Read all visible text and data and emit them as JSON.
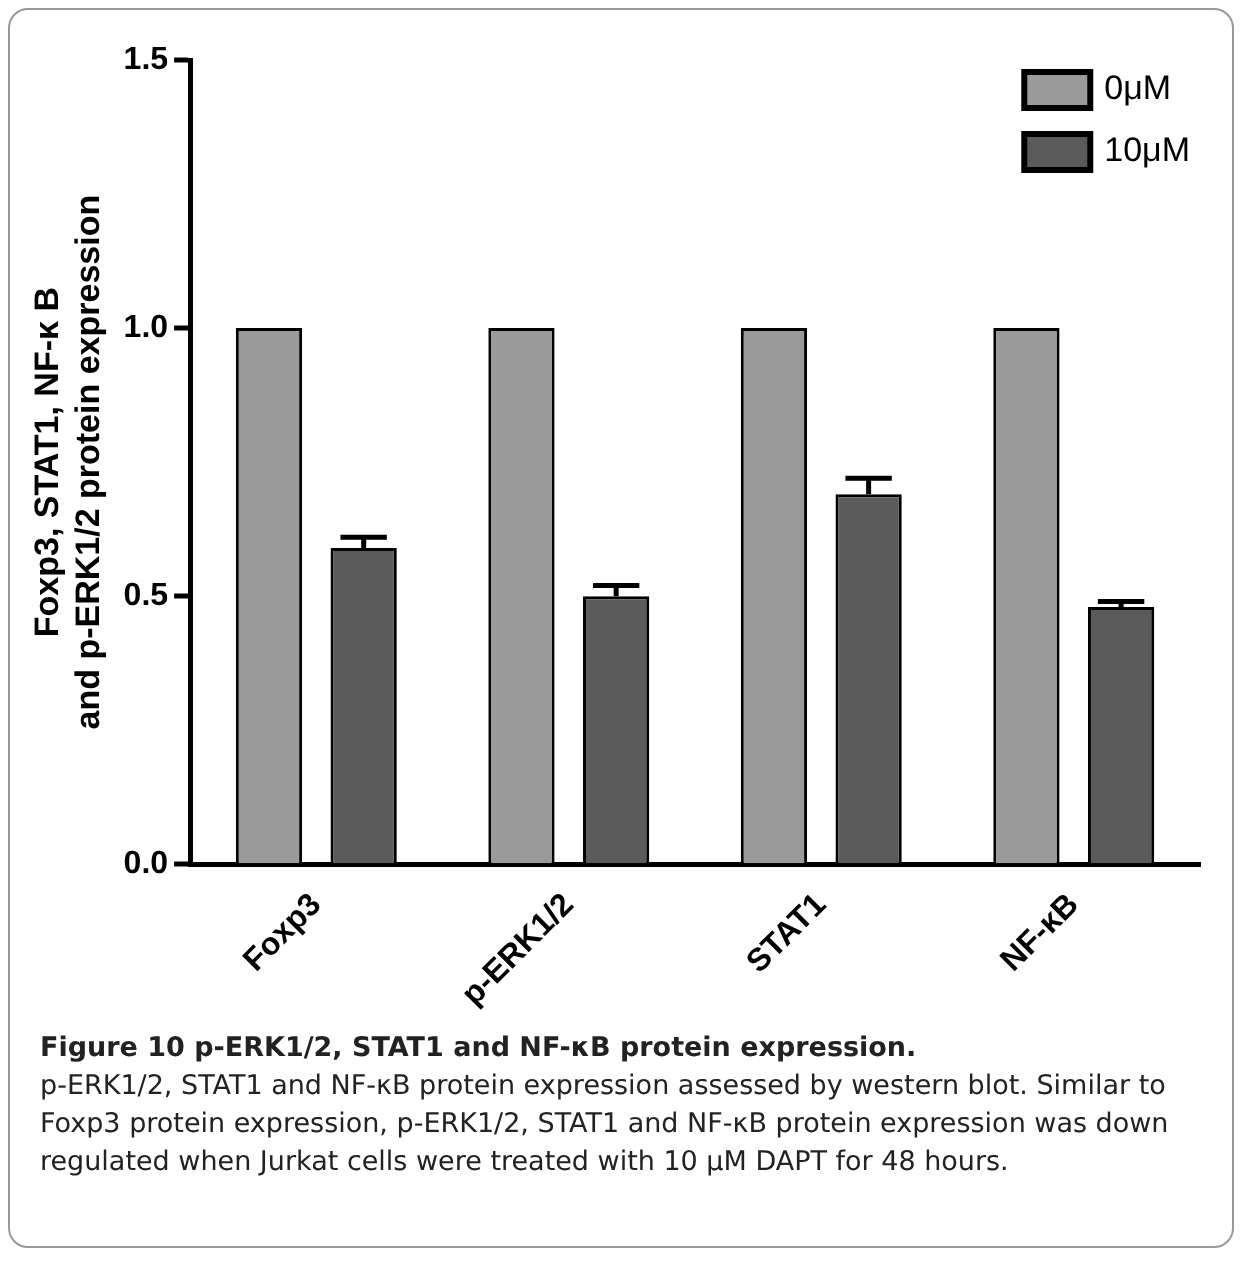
{
  "chart_data": {
    "type": "bar",
    "title": "Figure 10 p-ERK1/2, STAT1 and NF-κB protein expression.",
    "ylabel": "Foxp3, STAT1, NF-κ B\nand p-ERK1/2 protein expression",
    "categories": [
      "Foxp3",
      "p-ERK1/2",
      "STAT1",
      "NF-κB"
    ],
    "series": [
      {
        "name": "0μM",
        "color": "#9a9a9a",
        "values": [
          1.0,
          1.0,
          1.0,
          1.0
        ]
      },
      {
        "name": "10μM",
        "color": "#5a5a5a",
        "values": [
          0.59,
          0.5,
          0.69,
          0.48
        ],
        "errors": [
          [
            0.59,
            0.61
          ],
          [
            0.5,
            0.52
          ],
          [
            0.69,
            0.72
          ],
          [
            0.48,
            0.49
          ]
        ]
      }
    ],
    "ylim": [
      0,
      1.5
    ],
    "yticks": [
      {
        "value": 0,
        "label": "0.0"
      },
      0.5,
      {
        "value": 1,
        "label": "1.0"
      },
      1.5
    ],
    "grid": false,
    "legend": "top right",
    "annotations": [
      "p-ERK1/2, STAT1 and NF-κB protein expression assessed by western blot. Similar to Foxp3 protein expression, p-ERK1/2, STAT1 and NF-κB protein expression was down regulated when Jurkat cells were treated with 10 μM DAPT for 48 hours."
    ]
  }
}
